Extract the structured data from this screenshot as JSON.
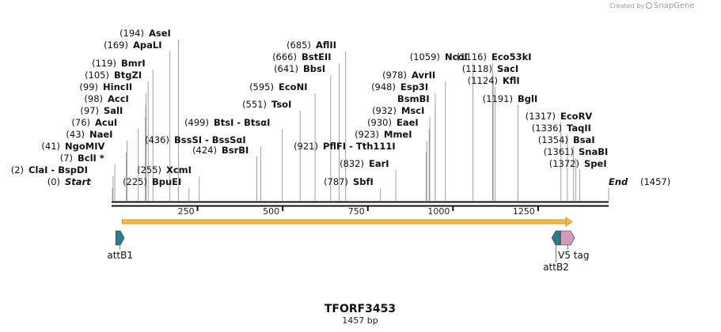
{
  "watermark": {
    "prefix": "Created by",
    "brand": "SnapGene"
  },
  "construct": {
    "name": "TFORF3453",
    "length_label": "1457 bp",
    "length": 1457
  },
  "ruler": {
    "ticks": [
      "250",
      "500",
      "750",
      "1000",
      "1250"
    ],
    "tick_values": [
      250,
      500,
      750,
      1000,
      1250
    ]
  },
  "sites": [
    {
      "name": "Start",
      "pos": 0,
      "pos_label": "(0)",
      "special": true
    },
    {
      "name": "ClaI  -  BspDI",
      "pos": 2,
      "pos_label": "(2)"
    },
    {
      "name": "BclI *",
      "pos": 7,
      "pos_label": "(7)"
    },
    {
      "name": "NgoMIV",
      "pos": 41,
      "pos_label": "(41)"
    },
    {
      "name": "NaeI",
      "pos": 43,
      "pos_label": "(43)"
    },
    {
      "name": "AcuI",
      "pos": 76,
      "pos_label": "(76)"
    },
    {
      "name": "SalI",
      "pos": 97,
      "pos_label": "(97)"
    },
    {
      "name": "AccI",
      "pos": 98,
      "pos_label": "(98)"
    },
    {
      "name": "HincII",
      "pos": 99,
      "pos_label": "(99)"
    },
    {
      "name": "BtgZI",
      "pos": 105,
      "pos_label": "(105)"
    },
    {
      "name": "BmrI",
      "pos": 119,
      "pos_label": "(119)"
    },
    {
      "name": "ApaLI",
      "pos": 169,
      "pos_label": "(169)"
    },
    {
      "name": "AseI",
      "pos": 194,
      "pos_label": "(194)"
    },
    {
      "name": "BpuEI",
      "pos": 225,
      "pos_label": "(225)"
    },
    {
      "name": "XcmI",
      "pos": 255,
      "pos_label": "(255)"
    },
    {
      "name": "BsrBI",
      "pos": 424,
      "pos_label": "(424)"
    },
    {
      "name": "BssSI  -  BssSαI",
      "pos": 436,
      "pos_label": "(436)"
    },
    {
      "name": "BtsI  -  BtsαI",
      "pos": 499,
      "pos_label": "(499)"
    },
    {
      "name": "TsoI",
      "pos": 551,
      "pos_label": "(551)"
    },
    {
      "name": "EcoNI",
      "pos": 595,
      "pos_label": "(595)"
    },
    {
      "name": "BbsI",
      "pos": 641,
      "pos_label": "(641)"
    },
    {
      "name": "BstEII",
      "pos": 666,
      "pos_label": "(666)"
    },
    {
      "name": "AflII",
      "pos": 685,
      "pos_label": "(685)"
    },
    {
      "name": "SbfI",
      "pos": 787,
      "pos_label": "(787)"
    },
    {
      "name": "EarI",
      "pos": 832,
      "pos_label": "(832)"
    },
    {
      "name": "PflFI  -  Tth111I",
      "pos": 921,
      "pos_label": "(921)"
    },
    {
      "name": "MmeI",
      "pos": 923,
      "pos_label": "(923)"
    },
    {
      "name": "EaeI",
      "pos": 930,
      "pos_label": "(930)"
    },
    {
      "name": "MscI",
      "pos": 932,
      "pos_label": "(932)"
    },
    {
      "name": "BsmBI",
      "pos": 948,
      "pos_label": ""
    },
    {
      "name": "Esp3I",
      "pos": 948,
      "pos_label": "(948)"
    },
    {
      "name": "AvrII",
      "pos": 978,
      "pos_label": "(978)"
    },
    {
      "name": "NcoI",
      "pos": 1059,
      "pos_label": "(1059)"
    },
    {
      "name": "Eco53kI",
      "pos": 1116,
      "pos_label": "(1116)"
    },
    {
      "name": "SacI",
      "pos": 1118,
      "pos_label": "(1118)"
    },
    {
      "name": "KflI",
      "pos": 1124,
      "pos_label": "(1124)"
    },
    {
      "name": "BglI",
      "pos": 1191,
      "pos_label": "(1191)"
    },
    {
      "name": "EcoRV",
      "pos": 1317,
      "pos_label": "(1317)"
    },
    {
      "name": "TaqII",
      "pos": 1336,
      "pos_label": "(1336)"
    },
    {
      "name": "BsaI",
      "pos": 1354,
      "pos_label": "(1354)"
    },
    {
      "name": "SnaBI",
      "pos": 1361,
      "pos_label": "(1361)"
    },
    {
      "name": "SpeI",
      "pos": 1372,
      "pos_label": "(1372)"
    },
    {
      "name": "End",
      "pos": 1457,
      "pos_label": "(1457)",
      "special": true
    }
  ],
  "orf": {
    "start": 29,
    "end": 1350,
    "color": "#f5b942",
    "border": "#d9932a"
  },
  "features": [
    {
      "name": "attB1",
      "start": 10,
      "end": 35,
      "direction": "forward",
      "color": "#2a7d91"
    },
    {
      "name": "attB2",
      "start": 1290,
      "end": 1315,
      "direction": "reverse",
      "color": "#2a7d91"
    },
    {
      "name": "V5 tag",
      "start": 1316,
      "end": 1357,
      "direction": "forward",
      "color": "#d39bb7"
    }
  ]
}
